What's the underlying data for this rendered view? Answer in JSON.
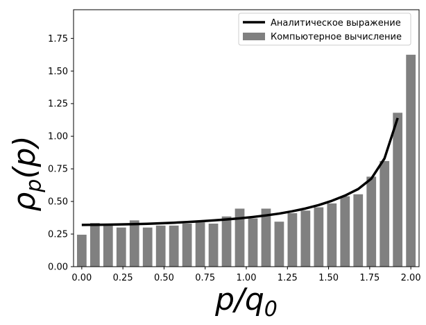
{
  "chart_data": {
    "type": "bar",
    "xlabel": "p/q",
    "xlabel_subscript": "0",
    "ylabel": "ρ",
    "ylabel_subscript": "p",
    "ylabel_suffix": "(p)",
    "xlim": [
      -0.05,
      2.05
    ],
    "ylim": [
      0,
      1.97
    ],
    "xticks": [
      0.0,
      0.25,
      0.5,
      0.75,
      1.0,
      1.25,
      1.5,
      1.75,
      2.0
    ],
    "xtick_labels": [
      "0.00",
      "0.25",
      "0.50",
      "0.75",
      "1.00",
      "1.25",
      "1.50",
      "1.75",
      "2.00"
    ],
    "yticks": [
      0.0,
      0.25,
      0.5,
      0.75,
      1.0,
      1.25,
      1.5,
      1.75
    ],
    "ytick_labels": [
      "0.00",
      "0.25",
      "0.50",
      "0.75",
      "1.00",
      "1.25",
      "1.50",
      "1.75"
    ],
    "grid": false,
    "legend_position": "top-right",
    "series": [
      {
        "name": "Аналитическое выражение",
        "type": "line",
        "color": "#000000",
        "x": [
          0.0,
          0.08,
          0.16,
          0.24,
          0.32,
          0.4,
          0.48,
          0.56,
          0.64,
          0.72,
          0.8,
          0.88,
          0.96,
          1.04,
          1.12,
          1.2,
          1.28,
          1.36,
          1.44,
          1.52,
          1.6,
          1.68,
          1.76,
          1.84,
          1.92
        ],
        "values": [
          0.32,
          0.321,
          0.322,
          0.324,
          0.326,
          0.329,
          0.333,
          0.337,
          0.342,
          0.348,
          0.355,
          0.362,
          0.371,
          0.381,
          0.393,
          0.407,
          0.425,
          0.446,
          0.472,
          0.505,
          0.545,
          0.595,
          0.675,
          0.83,
          1.14
        ]
      },
      {
        "name": "Компьютерное вычисление",
        "type": "bar",
        "color": "#808080",
        "x": [
          0.0,
          0.08,
          0.16,
          0.24,
          0.32,
          0.4,
          0.48,
          0.56,
          0.64,
          0.72,
          0.8,
          0.88,
          0.96,
          1.04,
          1.12,
          1.2,
          1.28,
          1.36,
          1.44,
          1.52,
          1.6,
          1.68,
          1.76,
          1.84,
          1.92,
          2.0
        ],
        "values": [
          0.245,
          0.335,
          0.325,
          0.3,
          0.355,
          0.3,
          0.315,
          0.315,
          0.33,
          0.34,
          0.33,
          0.385,
          0.445,
          0.37,
          0.445,
          0.345,
          0.41,
          0.43,
          0.455,
          0.485,
          0.54,
          0.555,
          0.69,
          0.81,
          1.18,
          1.625
        ]
      }
    ]
  }
}
